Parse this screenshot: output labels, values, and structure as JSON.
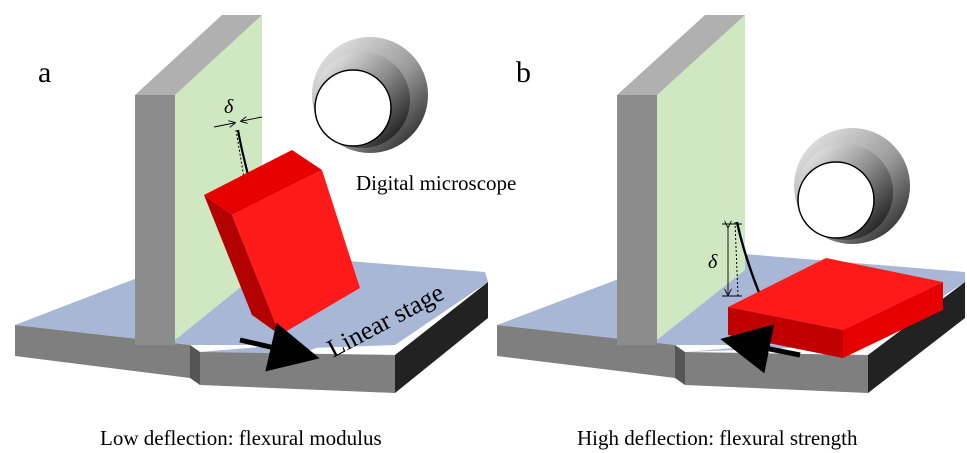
{
  "panels": {
    "a": {
      "letter": "a",
      "caption": "Low deflection: flexural modulus",
      "delta_symbol": "δ",
      "stage_label": "Linear stage",
      "microscope_label": "Digital microscope"
    },
    "b": {
      "letter": "b",
      "caption": "High deflection: flexural strength",
      "delta_symbol": "δ"
    }
  },
  "colors": {
    "base_top": "#a9b7d6",
    "base_front": "#7f7f7f",
    "wall_face": "#cfe8c2",
    "wall_edge": "#8c8c8c",
    "block_front": "#ff1a1a",
    "block_side": "#b30000",
    "microscope_dark": "#1a1a1a",
    "microscope_light": "#d9d9d9"
  }
}
